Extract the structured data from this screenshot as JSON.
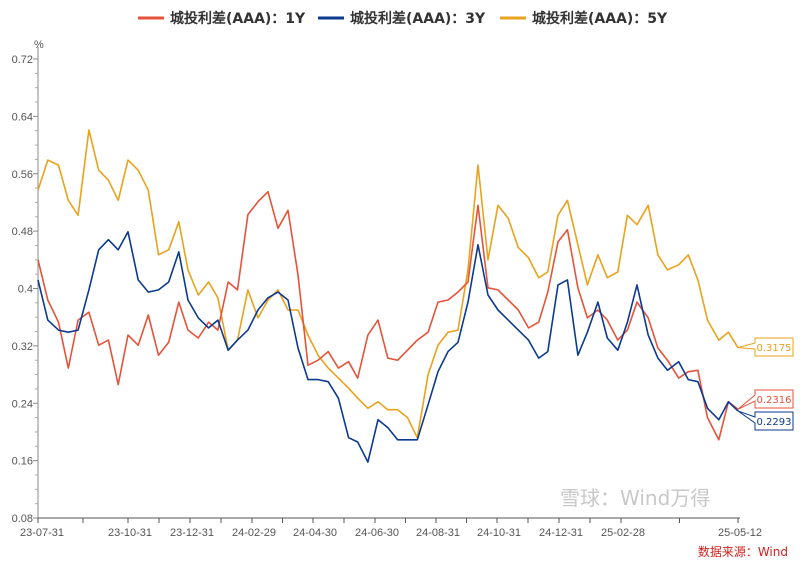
{
  "chart_data": {
    "type": "line",
    "title": "",
    "xlabel": "",
    "ylabel": "%",
    "ylim": [
      0.08,
      0.72
    ],
    "yticks": [
      "0.08",
      "0.16",
      "0.24",
      "0.32",
      "0.4",
      "0.48",
      "0.56",
      "0.64",
      "0.72"
    ],
    "xticks": [
      "23-07-31",
      "23-10-31",
      "23-12-31",
      "24-02-29",
      "24-04-30",
      "24-06-30",
      "24-08-31",
      "24-10-31",
      "24-12-31",
      "25-02-28",
      "25-05-12"
    ],
    "tick_dates": [
      "2023-07-31",
      "2023-10-31",
      "2023-12-31",
      "2024-02-29",
      "2024-04-30",
      "2024-06-30",
      "2024-08-31",
      "2024-10-31",
      "2024-12-31",
      "2025-02-28",
      "2025-05-12"
    ],
    "grid": false,
    "legend_position": "top",
    "x": [
      "2023-07-31",
      "2023-08-10",
      "2023-08-21",
      "2023-08-31",
      "2023-09-10",
      "2023-09-21",
      "2023-10-01",
      "2023-10-11",
      "2023-10-21",
      "2023-10-31",
      "2023-11-10",
      "2023-11-20",
      "2023-11-30",
      "2023-12-10",
      "2023-12-20",
      "2023-12-29",
      "2024-01-08",
      "2024-01-18",
      "2024-01-27",
      "2024-02-06",
      "2024-02-15",
      "2024-02-25",
      "2024-03-06",
      "2024-03-16",
      "2024-03-26",
      "2024-04-05",
      "2024-04-15",
      "2024-04-25",
      "2024-05-05",
      "2024-05-15",
      "2024-05-25",
      "2024-06-04",
      "2024-06-13",
      "2024-06-23",
      "2024-07-03",
      "2024-07-13",
      "2024-07-23",
      "2024-08-02",
      "2024-08-12",
      "2024-08-23",
      "2024-09-02",
      "2024-09-12",
      "2024-09-22",
      "2024-10-02",
      "2024-10-12",
      "2024-10-22",
      "2024-11-01",
      "2024-11-11",
      "2024-11-21",
      "2024-12-01",
      "2024-12-11",
      "2024-12-20",
      "2024-12-30",
      "2025-01-08",
      "2025-01-18",
      "2025-01-27",
      "2025-02-06",
      "2025-02-15",
      "2025-02-25",
      "2025-03-04",
      "2025-03-10",
      "2025-03-17",
      "2025-03-23",
      "2025-03-29",
      "2025-04-05",
      "2025-04-11",
      "2025-04-17",
      "2025-04-23",
      "2025-04-30",
      "2025-05-06",
      "2025-05-12"
    ],
    "series": [
      {
        "name": "城投利差(AAA)：1Y",
        "color": "#e5533a",
        "last_label": "0.2316",
        "values": [
          0.44,
          0.384,
          0.353,
          0.289,
          0.356,
          0.367,
          0.321,
          0.328,
          0.266,
          0.335,
          0.321,
          0.363,
          0.307,
          0.325,
          0.381,
          0.342,
          0.331,
          0.353,
          0.342,
          0.409,
          0.398,
          0.503,
          0.521,
          0.535,
          0.484,
          0.509,
          0.419,
          0.293,
          0.3,
          0.312,
          0.289,
          0.298,
          0.275,
          0.335,
          0.356,
          0.303,
          0.3,
          0.314,
          0.328,
          0.339,
          0.381,
          0.384,
          0.395,
          0.409,
          0.516,
          0.401,
          0.398,
          0.384,
          0.37,
          0.345,
          0.353,
          0.395,
          0.465,
          0.482,
          0.401,
          0.359,
          0.37,
          0.356,
          0.328,
          0.342,
          0.381,
          0.359,
          0.317,
          0.3,
          0.275,
          0.284,
          0.286,
          0.22,
          0.189,
          0.242,
          0.2316
        ]
      },
      {
        "name": "城投利差(AAA)：3Y",
        "color": "#0b3a8f",
        "last_label": "0.2293",
        "values": [
          0.412,
          0.356,
          0.342,
          0.339,
          0.342,
          0.398,
          0.454,
          0.468,
          0.454,
          0.479,
          0.412,
          0.395,
          0.398,
          0.409,
          0.451,
          0.384,
          0.359,
          0.345,
          0.356,
          0.314,
          0.328,
          0.342,
          0.37,
          0.387,
          0.395,
          0.384,
          0.317,
          0.273,
          0.273,
          0.27,
          0.247,
          0.192,
          0.186,
          0.158,
          0.217,
          0.206,
          0.189,
          0.189,
          0.189,
          0.238,
          0.284,
          0.312,
          0.325,
          0.381,
          0.461,
          0.391,
          0.37,
          0.356,
          0.342,
          0.328,
          0.303,
          0.312,
          0.405,
          0.412,
          0.307,
          0.339,
          0.381,
          0.331,
          0.314,
          0.353,
          0.405,
          0.335,
          0.303,
          0.286,
          0.298,
          0.273,
          0.27,
          0.233,
          0.217,
          0.242,
          0.2293
        ]
      },
      {
        "name": "城投利差(AAA)：5Y",
        "color": "#e9a21c",
        "last_label": "0.3175",
        "values": [
          0.537,
          0.579,
          0.572,
          0.523,
          0.502,
          0.621,
          0.565,
          0.551,
          0.523,
          0.579,
          0.565,
          0.537,
          0.447,
          0.454,
          0.493,
          0.426,
          0.391,
          0.409,
          0.387,
          0.314,
          0.328,
          0.398,
          0.359,
          0.384,
          0.398,
          0.37,
          0.37,
          0.335,
          0.307,
          0.289,
          0.275,
          0.261,
          0.247,
          0.233,
          0.242,
          0.231,
          0.231,
          0.22,
          0.192,
          0.28,
          0.321,
          0.339,
          0.342,
          0.426,
          0.572,
          0.44,
          0.516,
          0.498,
          0.457,
          0.443,
          0.415,
          0.423,
          0.502,
          0.523,
          0.461,
          0.405,
          0.447,
          0.415,
          0.423,
          0.502,
          0.489,
          0.516,
          0.447,
          0.426,
          0.433,
          0.447,
          0.412,
          0.356,
          0.328,
          0.339,
          0.3175
        ]
      }
    ]
  },
  "source": "数据来源：Wind",
  "watermark": "雪球：Wind万得"
}
